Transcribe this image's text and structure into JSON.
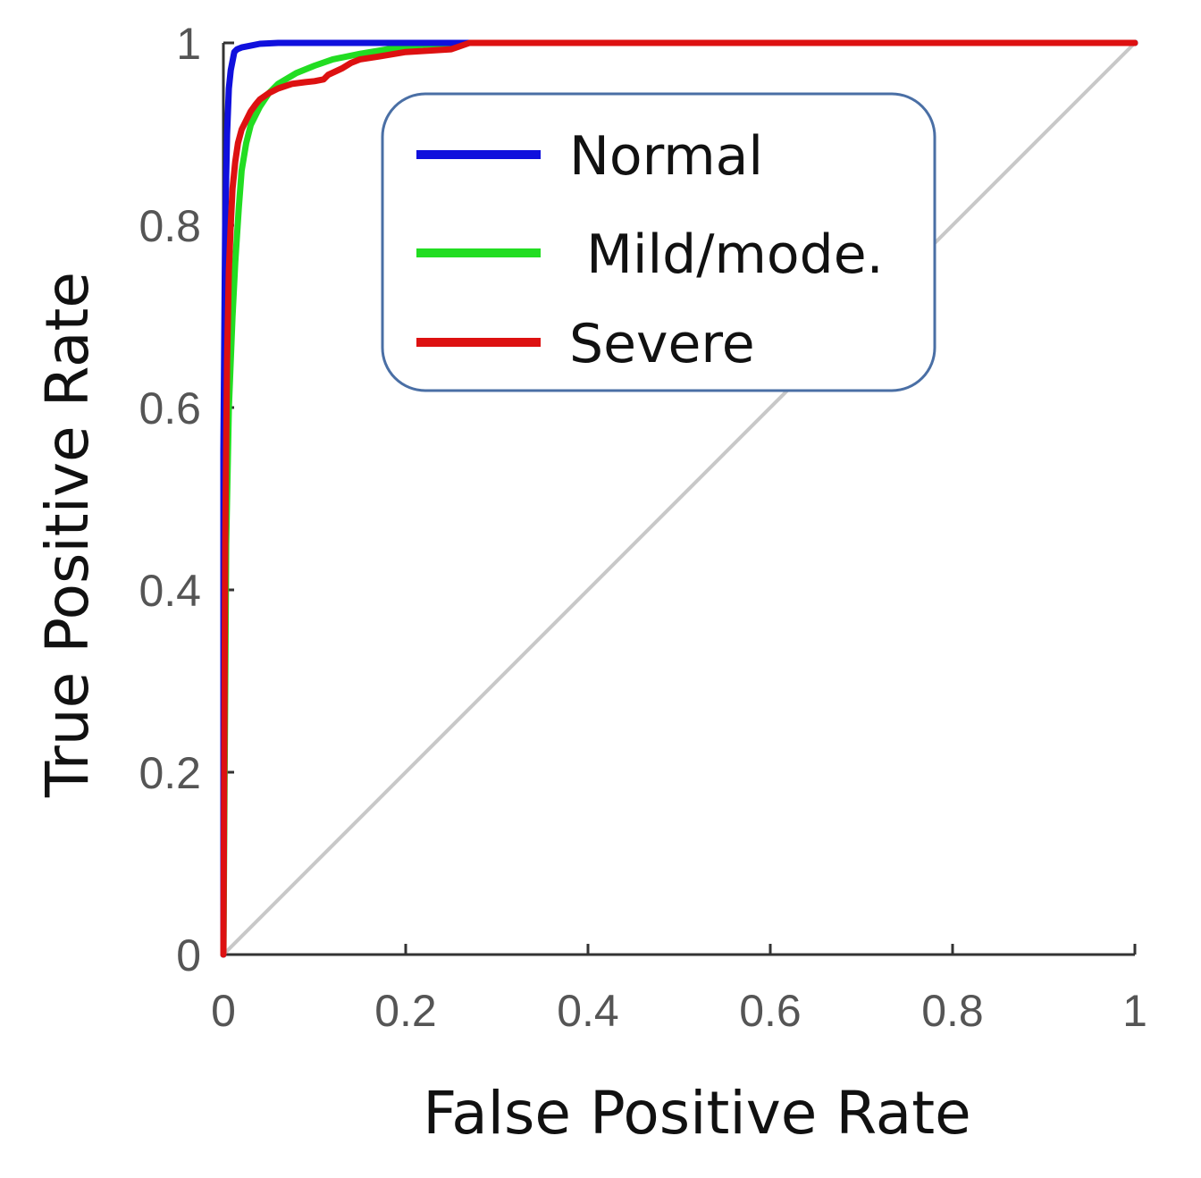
{
  "chart_data": {
    "type": "line",
    "title": "",
    "xlabel": "False Positive Rate",
    "ylabel": "True Positive Rate",
    "xlim": [
      0,
      1
    ],
    "ylim": [
      0,
      1
    ],
    "xticks": [
      0,
      0.2,
      0.4,
      0.6,
      0.8,
      1
    ],
    "xtick_labels": [
      "0",
      "0.2",
      "0.4",
      "0.6",
      "0.8",
      "1"
    ],
    "yticks": [
      0,
      0.2,
      0.4,
      0.6,
      0.8,
      1
    ],
    "ytick_labels": [
      "0",
      "0.2",
      "0.4",
      "0.6",
      "0.8",
      "1"
    ],
    "grid": false,
    "legend_position": "top-center",
    "reference_line": {
      "x": [
        0,
        1
      ],
      "y": [
        0,
        1
      ],
      "color": "#c8c8c8"
    },
    "series": [
      {
        "name": "Normal",
        "legend_label": "Normal",
        "color": "#1010dd",
        "x": [
          0,
          0,
          0.002,
          0.004,
          0.006,
          0.008,
          0.01,
          0.012,
          0.015,
          0.02,
          0.03,
          0.04,
          0.06,
          0.1,
          0.2,
          0.3,
          1.0
        ],
        "y": [
          0,
          0.55,
          0.8,
          0.9,
          0.95,
          0.97,
          0.98,
          0.99,
          0.993,
          0.995,
          0.997,
          0.999,
          1.0,
          1.0,
          1.0,
          1.0,
          1.0
        ]
      },
      {
        "name": "Mild/mode.",
        "legend_label": " Mild/mode.",
        "color": "#22dd22",
        "x": [
          0,
          0.003,
          0.006,
          0.01,
          0.013,
          0.017,
          0.02,
          0.025,
          0.03,
          0.04,
          0.05,
          0.06,
          0.08,
          0.1,
          0.12,
          0.15,
          0.18,
          0.2,
          0.22,
          0.25,
          0.27,
          1.0
        ],
        "y": [
          0,
          0.45,
          0.6,
          0.7,
          0.76,
          0.82,
          0.86,
          0.89,
          0.91,
          0.93,
          0.945,
          0.955,
          0.967,
          0.975,
          0.982,
          0.988,
          0.993,
          0.996,
          0.998,
          0.999,
          1.0,
          1.0
        ]
      },
      {
        "name": "Severe",
        "legend_label": "Severe",
        "color": "#dd1111",
        "x": [
          0,
          0.002,
          0.004,
          0.006,
          0.008,
          0.01,
          0.013,
          0.016,
          0.02,
          0.025,
          0.03,
          0.035,
          0.04,
          0.05,
          0.06,
          0.075,
          0.09,
          0.1,
          0.11,
          0.115,
          0.13,
          0.14,
          0.15,
          0.17,
          0.2,
          0.25,
          0.27,
          1.0
        ],
        "y": [
          0,
          0.45,
          0.65,
          0.75,
          0.8,
          0.84,
          0.87,
          0.89,
          0.905,
          0.915,
          0.925,
          0.932,
          0.938,
          0.945,
          0.95,
          0.955,
          0.957,
          0.958,
          0.96,
          0.965,
          0.972,
          0.978,
          0.982,
          0.985,
          0.99,
          0.993,
          1.0,
          1.0
        ]
      }
    ]
  }
}
